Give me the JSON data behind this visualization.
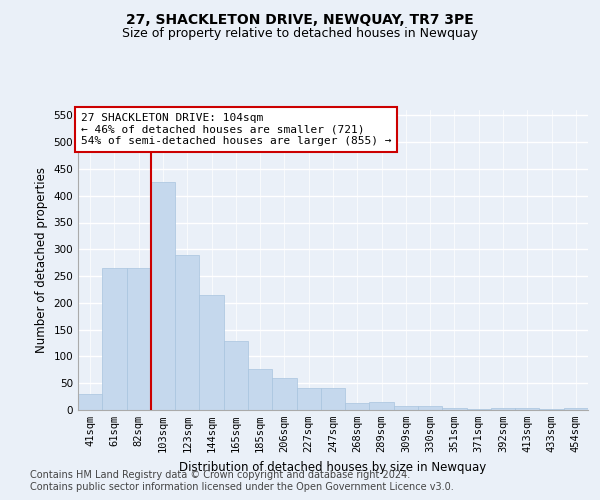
{
  "title": "27, SHACKLETON DRIVE, NEWQUAY, TR7 3PE",
  "subtitle": "Size of property relative to detached houses in Newquay",
  "xlabel": "Distribution of detached houses by size in Newquay",
  "ylabel": "Number of detached properties",
  "categories": [
    "41sqm",
    "61sqm",
    "82sqm",
    "103sqm",
    "123sqm",
    "144sqm",
    "165sqm",
    "185sqm",
    "206sqm",
    "227sqm",
    "247sqm",
    "268sqm",
    "289sqm",
    "309sqm",
    "330sqm",
    "351sqm",
    "371sqm",
    "392sqm",
    "413sqm",
    "433sqm",
    "454sqm"
  ],
  "values": [
    30,
    265,
    265,
    425,
    290,
    215,
    128,
    77,
    60,
    42,
    42,
    13,
    15,
    8,
    8,
    4,
    1,
    4,
    4,
    1,
    4
  ],
  "bar_color": "#c5d8ed",
  "bar_edge_color": "#a8c4de",
  "vline_color": "#cc0000",
  "vline_x_index": 2.5,
  "annotation_text": "27 SHACKLETON DRIVE: 104sqm\n← 46% of detached houses are smaller (721)\n54% of semi-detached houses are larger (855) →",
  "annotation_box_color": "#ffffff",
  "annotation_box_edge_color": "#cc0000",
  "ylim": [
    0,
    560
  ],
  "yticks": [
    0,
    50,
    100,
    150,
    200,
    250,
    300,
    350,
    400,
    450,
    500,
    550
  ],
  "bg_color": "#eaf0f8",
  "plot_bg_color": "#eaf0f8",
  "grid_color": "#ffffff",
  "footer_line1": "Contains HM Land Registry data © Crown copyright and database right 2024.",
  "footer_line2": "Contains public sector information licensed under the Open Government Licence v3.0.",
  "title_fontsize": 10,
  "subtitle_fontsize": 9,
  "axis_label_fontsize": 8.5,
  "tick_fontsize": 7.5,
  "footer_fontsize": 7,
  "annotation_fontsize": 8
}
